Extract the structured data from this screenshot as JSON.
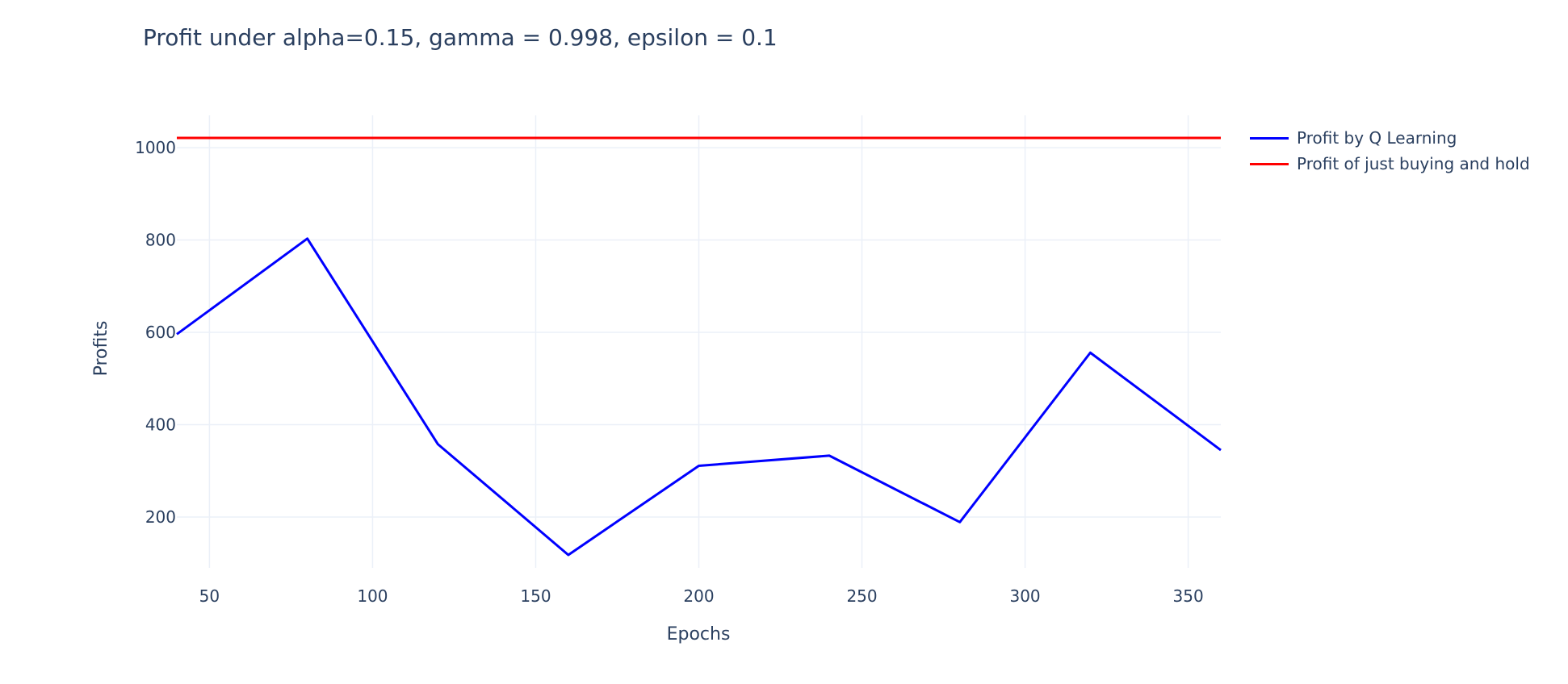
{
  "chart_data": {
    "type": "line",
    "title": "Profit under alpha=0.15, gamma = 0.998, epsilon = 0.1",
    "xlabel": "Epochs",
    "ylabel": "Profits",
    "xlim": [
      40,
      360
    ],
    "ylim": [
      90,
      1070
    ],
    "x_ticks": [
      50,
      100,
      150,
      200,
      250,
      300,
      350
    ],
    "y_ticks": [
      200,
      400,
      600,
      800,
      1000
    ],
    "grid": true,
    "legend_position": "right",
    "series": [
      {
        "name": "Profit by Q Learning",
        "color": "#0000ff",
        "x": [
          40,
          80,
          120,
          160,
          200,
          240,
          280,
          320,
          360
        ],
        "y": [
          596,
          803,
          358,
          118,
          311,
          333,
          189,
          556,
          345
        ]
      },
      {
        "name": "Profit of just buying and hold",
        "color": "#ff0000",
        "x": [
          40,
          360
        ],
        "y": [
          1021,
          1021
        ]
      }
    ]
  }
}
